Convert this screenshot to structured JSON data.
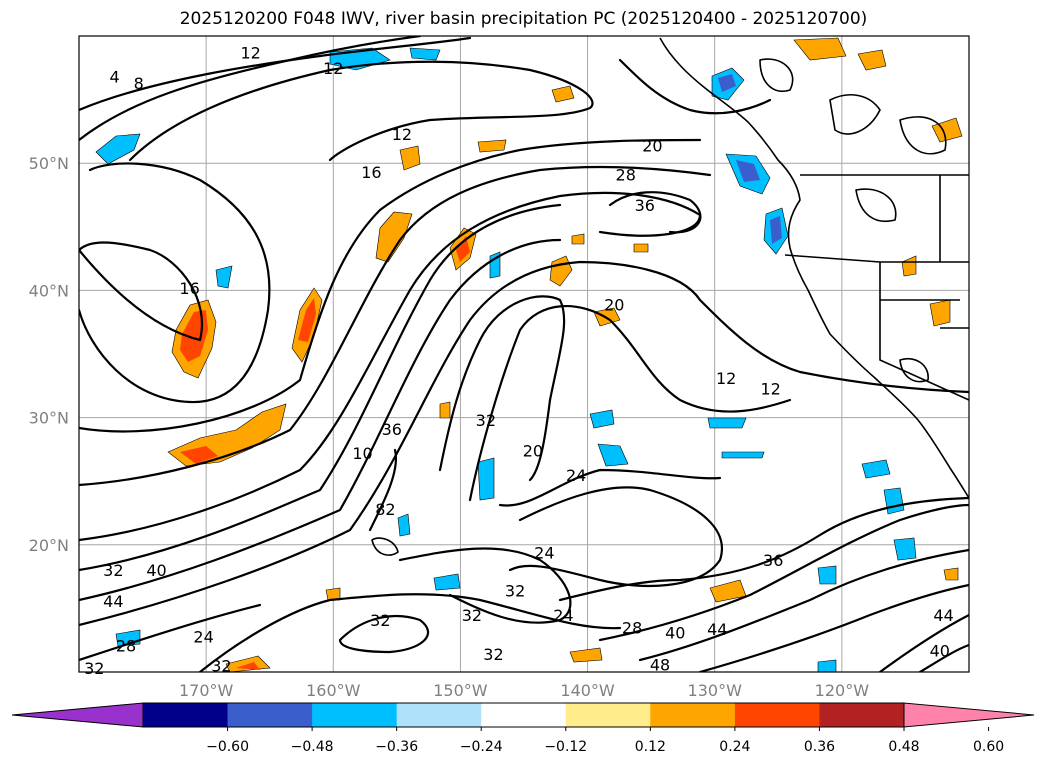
{
  "title": "2025120200 F048 IWV, river basin precipitation PC (2025120400 - 2025120700)",
  "map": {
    "lon_range": [
      -180,
      -110
    ],
    "lat_range": [
      10,
      60
    ],
    "lat_ticks": [
      {
        "value": 50,
        "label": "50°N"
      },
      {
        "value": 40,
        "label": "40°N"
      },
      {
        "value": 30,
        "label": "30°N"
      },
      {
        "value": 20,
        "label": "20°N"
      }
    ],
    "lon_ticks": [
      {
        "value": -170,
        "label": "170°W"
      },
      {
        "value": -160,
        "label": "160°W"
      },
      {
        "value": -150,
        "label": "150°W"
      },
      {
        "value": -140,
        "label": "140°W"
      },
      {
        "value": -130,
        "label": "130°W"
      },
      {
        "value": -120,
        "label": "120°W"
      }
    ],
    "grid": true
  },
  "contour_labels": [
    {
      "text": "12",
      "lon": -166.5,
      "lat": 58.7
    },
    {
      "text": "4",
      "lon": -177.2,
      "lat": 56.8
    },
    {
      "text": "8",
      "lon": -175.3,
      "lat": 56.3
    },
    {
      "text": "12",
      "lon": -160,
      "lat": 57.5
    },
    {
      "text": "12",
      "lon": -154.6,
      "lat": 52.3
    },
    {
      "text": "16",
      "lon": -157,
      "lat": 49.3
    },
    {
      "text": "20",
      "lon": -134.9,
      "lat": 51.4
    },
    {
      "text": "28",
      "lon": -137,
      "lat": 49.1
    },
    {
      "text": "36",
      "lon": -135.5,
      "lat": 46.7
    },
    {
      "text": "16",
      "lon": -171.3,
      "lat": 40.2
    },
    {
      "text": "20",
      "lon": -137.9,
      "lat": 38.9
    },
    {
      "text": "12",
      "lon": -129.1,
      "lat": 33.1
    },
    {
      "text": "12",
      "lon": -125.6,
      "lat": 32.3
    },
    {
      "text": "36",
      "lon": -155.4,
      "lat": 29.1
    },
    {
      "text": "10",
      "lon": -157.7,
      "lat": 27.2
    },
    {
      "text": "32",
      "lon": -148,
      "lat": 29.8
    },
    {
      "text": "20",
      "lon": -144.3,
      "lat": 27.4
    },
    {
      "text": "24",
      "lon": -140.9,
      "lat": 25.5
    },
    {
      "text": "82",
      "lon": -155.9,
      "lat": 22.8
    },
    {
      "text": "24",
      "lon": -143.4,
      "lat": 19.4
    },
    {
      "text": "32",
      "lon": -177.3,
      "lat": 18
    },
    {
      "text": "40",
      "lon": -173.9,
      "lat": 18
    },
    {
      "text": "44",
      "lon": -177.3,
      "lat": 15.6
    },
    {
      "text": "32",
      "lon": -145.7,
      "lat": 16.4
    },
    {
      "text": "32",
      "lon": -149.1,
      "lat": 14.5
    },
    {
      "text": "32",
      "lon": -156.3,
      "lat": 14.1
    },
    {
      "text": "24",
      "lon": -141.9,
      "lat": 14.5
    },
    {
      "text": "36",
      "lon": -125.4,
      "lat": 18.8
    },
    {
      "text": "28",
      "lon": -136.5,
      "lat": 13.5
    },
    {
      "text": "40",
      "lon": -133.1,
      "lat": 13.1
    },
    {
      "text": "44",
      "lon": -129.8,
      "lat": 13.4
    },
    {
      "text": "24",
      "lon": -170.2,
      "lat": 12.8
    },
    {
      "text": "28",
      "lon": -176.3,
      "lat": 12.1
    },
    {
      "text": "32",
      "lon": -147.4,
      "lat": 11.4
    },
    {
      "text": "32",
      "lon": -168.8,
      "lat": 10.5
    },
    {
      "text": "32",
      "lon": -178.8,
      "lat": 10.3
    },
    {
      "text": "48",
      "lon": -134.3,
      "lat": 10.6
    },
    {
      "text": "44",
      "lon": -112,
      "lat": 14.5
    },
    {
      "text": "40",
      "lon": -112.3,
      "lat": 11.7
    }
  ],
  "colorbar": {
    "ticks": [
      "-0.60",
      "-0.48",
      "-0.36",
      "-0.24",
      "-0.12",
      "0.12",
      "0.24",
      "0.36",
      "0.48",
      "0.60"
    ],
    "colors": [
      "#9932cc",
      "#00008b",
      "#3a5fcd",
      "#00bfff",
      "#afe1fa",
      "#ffffff",
      "#ffec8b",
      "#ffa500",
      "#ff4500",
      "#b22222",
      "#ff82ab"
    ]
  }
}
